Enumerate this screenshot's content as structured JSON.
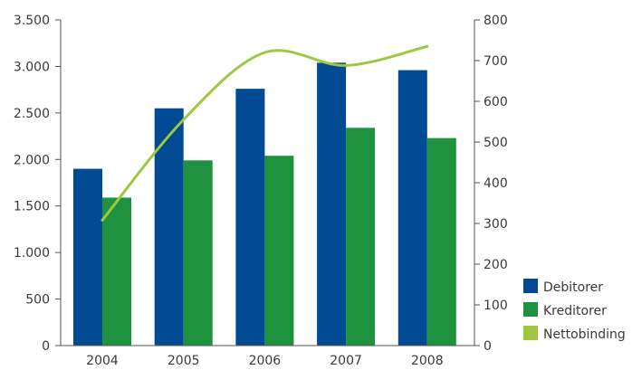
{
  "chart_data": {
    "type": "bar",
    "categories": [
      "2004",
      "2005",
      "2006",
      "2007",
      "2008"
    ],
    "series": [
      {
        "name": "Debitorer",
        "type": "bar",
        "axis": "left",
        "color": "#004b93",
        "values": [
          1900,
          2550,
          2760,
          3040,
          2960
        ]
      },
      {
        "name": "Kreditorer",
        "type": "bar",
        "axis": "left",
        "color": "#1f9240",
        "values": [
          1590,
          1990,
          2040,
          2340,
          2230
        ]
      },
      {
        "name": "Nettobinding",
        "type": "line",
        "axis": "right",
        "color": "#9dc83f",
        "values": [
          308,
          555,
          720,
          688,
          735
        ]
      }
    ],
    "y_left": {
      "min": 0,
      "max": 3500,
      "ticks": [
        0,
        500,
        1000,
        1500,
        2000,
        2500,
        3000,
        3500
      ],
      "tick_labels": [
        "0",
        "500",
        "1.000",
        "1.500",
        "2.000",
        "2.500",
        "3.000",
        "3.500"
      ]
    },
    "y_right": {
      "min": 0,
      "max": 800,
      "ticks": [
        0,
        100,
        200,
        300,
        400,
        500,
        600,
        700,
        800
      ],
      "tick_labels": [
        "0",
        "100",
        "200",
        "300",
        "400",
        "500",
        "600",
        "700",
        "800"
      ]
    },
    "grid": false,
    "legend_position": "bottom-right",
    "title": "",
    "xlabel": "",
    "ylabel": ""
  }
}
